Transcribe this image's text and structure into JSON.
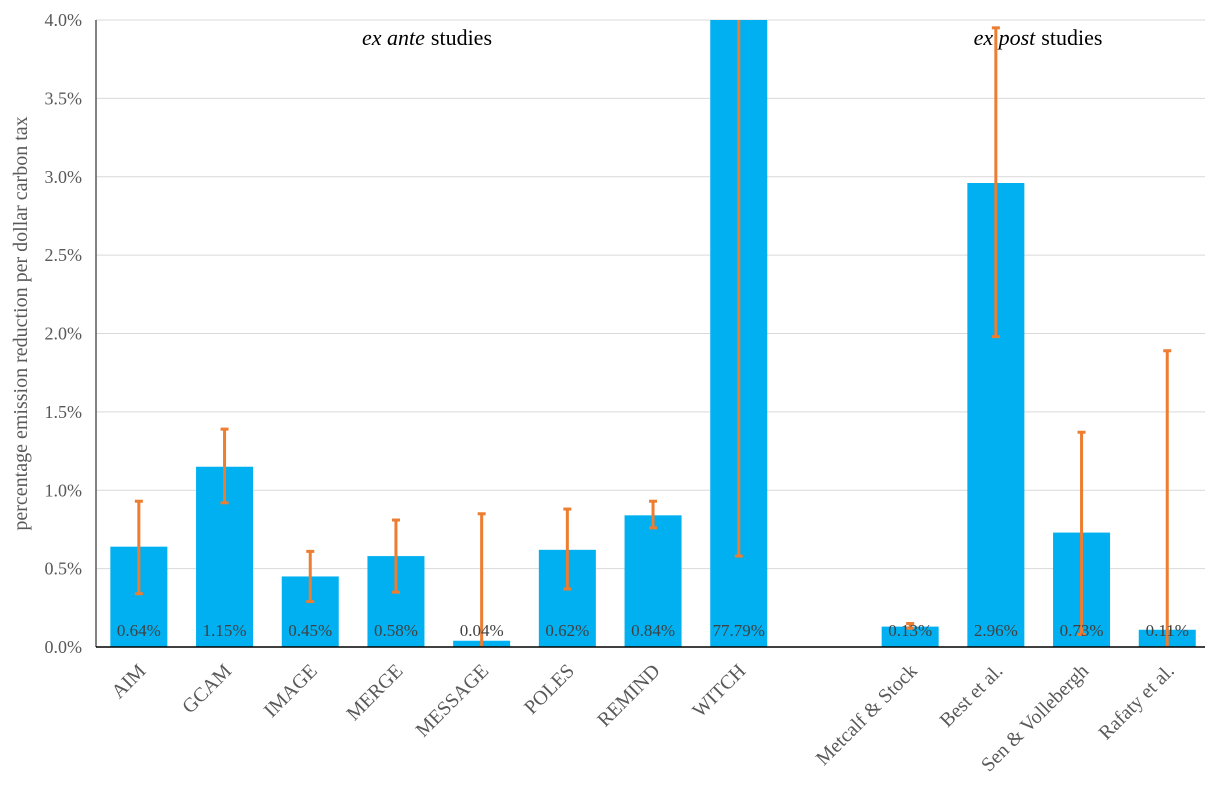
{
  "chart_data": {
    "type": "bar",
    "title": "",
    "xlabel": "",
    "ylabel": "percentage emission reduction per dollar carbon tax",
    "ylim": [
      0,
      4.0
    ],
    "yticks": [
      "0.0%",
      "0.5%",
      "1.0%",
      "1.5%",
      "2.0%",
      "2.5%",
      "3.0%",
      "3.5%",
      "4.0%"
    ],
    "grid": true,
    "legend": "none",
    "groups": [
      {
        "label_italic": "ex ante",
        "label_rest": "studies",
        "categories": [
          "AIM",
          "GCAM",
          "IMAGE",
          "MERGE",
          "MESSAGE",
          "POLES",
          "REMIND",
          "WITCH"
        ]
      },
      {
        "label_italic": "ex post",
        "label_rest": "studies",
        "categories": [
          "Metcalf & Stock",
          "Best et al.",
          "Sen & Vollebergh",
          "Rafaty et al."
        ]
      }
    ],
    "categories": [
      "AIM",
      "GCAM",
      "IMAGE",
      "MERGE",
      "MESSAGE",
      "POLES",
      "REMIND",
      "WITCH",
      "Metcalf & Stock",
      "Best et al.",
      "Sen & Vollebergh",
      "Rafaty et al."
    ],
    "values": [
      0.64,
      1.15,
      0.45,
      0.58,
      0.04,
      0.62,
      0.84,
      77.79,
      0.13,
      2.96,
      0.73,
      0.11
    ],
    "data_labels": [
      "0.64%",
      "1.15%",
      "0.45%",
      "0.58%",
      "0.04%",
      "0.62%",
      "0.84%",
      "77.79%",
      "0.13%",
      "2.96%",
      "0.73%",
      "0.11%"
    ],
    "error_low": [
      0.34,
      0.92,
      0.29,
      0.35,
      0.0,
      0.37,
      0.76,
      0.58,
      0.12,
      1.98,
      0.08,
      0.0
    ],
    "error_high": [
      0.93,
      1.39,
      0.61,
      0.81,
      0.85,
      0.88,
      0.93,
      4.0,
      0.15,
      3.95,
      1.37,
      1.89
    ],
    "colors": {
      "bar": "#00b0f0",
      "error": "#ed7d31",
      "grid": "#d9d9d9",
      "axis": "#595959"
    }
  }
}
